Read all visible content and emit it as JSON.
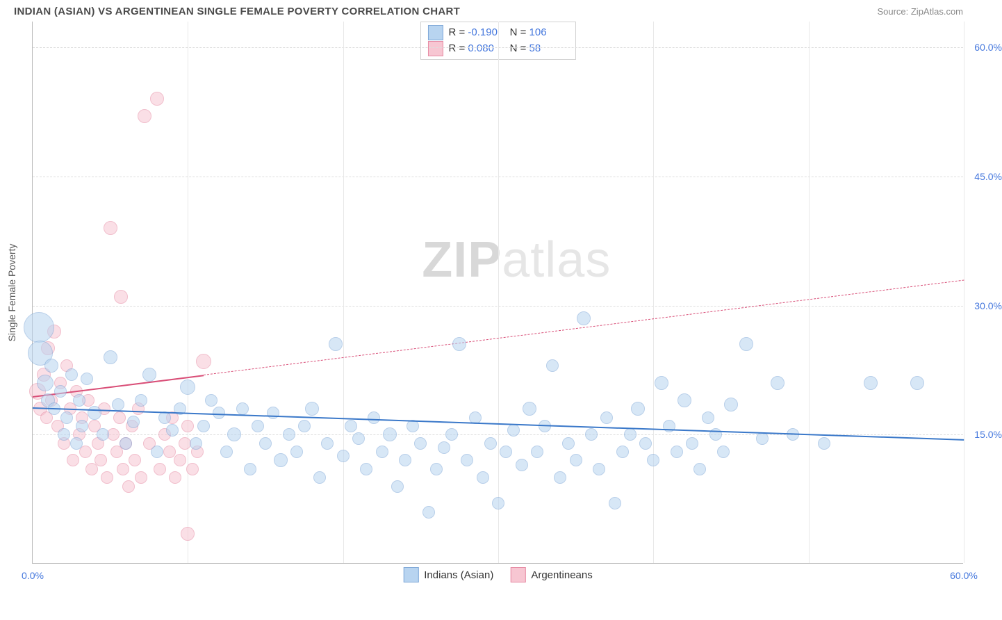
{
  "header": {
    "title": "INDIAN (ASIAN) VS ARGENTINEAN SINGLE FEMALE POVERTY CORRELATION CHART",
    "source": "Source: ZipAtlas.com"
  },
  "chart": {
    "type": "scatter",
    "ylabel": "Single Female Poverty",
    "watermark_a": "ZIP",
    "watermark_b": "atlas",
    "background_color": "#ffffff",
    "grid_color": "#dddddd",
    "axis_color": "#bbbbbb",
    "label_color": "#4477dd",
    "x_domain": [
      0,
      60
    ],
    "y_domain": [
      0,
      63
    ],
    "y_gridlines": [
      15,
      30,
      45,
      60
    ],
    "y_tick_labels": [
      "15.0%",
      "30.0%",
      "45.0%",
      "60.0%"
    ],
    "x_gridlines": [
      10,
      20,
      30,
      40,
      50,
      60
    ],
    "x_tick_visible": [
      {
        "pos": 0,
        "label": "0.0%"
      },
      {
        "pos": 60,
        "label": "60.0%"
      }
    ],
    "series": {
      "indians": {
        "label": "Indians (Asian)",
        "fill": "#b8d4f0",
        "stroke": "#7fa8d8",
        "fill_opacity": 0.55,
        "marker_base_r": 9,
        "trend": {
          "x1": 0,
          "y1": 18.2,
          "x2": 60,
          "y2": 14.5,
          "color": "#3a78c9",
          "width": 2.5,
          "solid_until_x": 60
        },
        "points": [
          [
            0.4,
            27.5,
            22
          ],
          [
            0.5,
            24.5,
            18
          ],
          [
            0.8,
            21,
            12
          ],
          [
            1.0,
            19,
            10
          ],
          [
            1.2,
            23,
            10
          ],
          [
            1.4,
            18,
            9
          ],
          [
            1.8,
            20,
            9
          ],
          [
            2.0,
            15,
            9
          ],
          [
            2.2,
            17,
            9
          ],
          [
            2.5,
            22,
            9
          ],
          [
            2.8,
            14,
            9
          ],
          [
            3.0,
            19,
            9
          ],
          [
            3.2,
            16,
            9
          ],
          [
            3.5,
            21.5,
            9
          ],
          [
            4.0,
            17.5,
            10
          ],
          [
            4.5,
            15,
            9
          ],
          [
            5.0,
            24,
            10
          ],
          [
            5.5,
            18.5,
            9
          ],
          [
            6.0,
            14,
            9
          ],
          [
            6.5,
            16.5,
            9
          ],
          [
            7.0,
            19,
            9
          ],
          [
            7.5,
            22,
            10
          ],
          [
            8.0,
            13,
            9
          ],
          [
            8.5,
            17,
            9
          ],
          [
            9.0,
            15.5,
            9
          ],
          [
            9.5,
            18,
            9
          ],
          [
            10.0,
            20.5,
            11
          ],
          [
            10.5,
            14,
            9
          ],
          [
            11.0,
            16,
            9
          ],
          [
            11.5,
            19,
            9
          ],
          [
            12.0,
            17.5,
            9
          ],
          [
            12.5,
            13,
            9
          ],
          [
            13.0,
            15,
            10
          ],
          [
            13.5,
            18,
            9
          ],
          [
            14.0,
            11,
            9
          ],
          [
            14.5,
            16,
            9
          ],
          [
            15.0,
            14,
            9
          ],
          [
            15.5,
            17.5,
            9
          ],
          [
            16.0,
            12,
            10
          ],
          [
            16.5,
            15,
            9
          ],
          [
            17.0,
            13,
            9
          ],
          [
            17.5,
            16,
            9
          ],
          [
            18.0,
            18,
            10
          ],
          [
            18.5,
            10,
            9
          ],
          [
            19.0,
            14,
            9
          ],
          [
            19.5,
            25.5,
            10
          ],
          [
            20.0,
            12.5,
            9
          ],
          [
            20.5,
            16,
            9
          ],
          [
            21.0,
            14.5,
            9
          ],
          [
            21.5,
            11,
            9
          ],
          [
            22.0,
            17,
            9
          ],
          [
            22.5,
            13,
            9
          ],
          [
            23.0,
            15,
            10
          ],
          [
            23.5,
            9,
            9
          ],
          [
            24.0,
            12,
            9
          ],
          [
            24.5,
            16,
            9
          ],
          [
            25.0,
            14,
            9
          ],
          [
            25.5,
            6,
            9
          ],
          [
            26.0,
            11,
            9
          ],
          [
            26.5,
            13.5,
            9
          ],
          [
            27.0,
            15,
            9
          ],
          [
            27.5,
            25.5,
            10
          ],
          [
            28.0,
            12,
            9
          ],
          [
            28.5,
            17,
            9
          ],
          [
            29.0,
            10,
            9
          ],
          [
            29.5,
            14,
            9
          ],
          [
            30.0,
            7,
            9
          ],
          [
            30.5,
            13,
            9
          ],
          [
            31.0,
            15.5,
            9
          ],
          [
            31.5,
            11.5,
            9
          ],
          [
            32.0,
            18,
            10
          ],
          [
            32.5,
            13,
            9
          ],
          [
            33.0,
            16,
            9
          ],
          [
            33.5,
            23,
            9
          ],
          [
            34.0,
            10,
            9
          ],
          [
            34.5,
            14,
            9
          ],
          [
            35.0,
            12,
            9
          ],
          [
            35.5,
            28.5,
            10
          ],
          [
            36.0,
            15,
            9
          ],
          [
            36.5,
            11,
            9
          ],
          [
            37.0,
            17,
            9
          ],
          [
            37.5,
            7,
            9
          ],
          [
            38.0,
            13,
            9
          ],
          [
            38.5,
            15,
            9
          ],
          [
            39.0,
            18,
            10
          ],
          [
            39.5,
            14,
            9
          ],
          [
            40.0,
            12,
            9
          ],
          [
            40.5,
            21,
            10
          ],
          [
            41.0,
            16,
            9
          ],
          [
            41.5,
            13,
            9
          ],
          [
            42.0,
            19,
            10
          ],
          [
            42.5,
            14,
            9
          ],
          [
            43.0,
            11,
            9
          ],
          [
            43.5,
            17,
            9
          ],
          [
            44.0,
            15,
            9
          ],
          [
            44.5,
            13,
            9
          ],
          [
            45.0,
            18.5,
            10
          ],
          [
            46.0,
            25.5,
            10
          ],
          [
            47.0,
            14.5,
            9
          ],
          [
            48.0,
            21,
            10
          ],
          [
            49.0,
            15,
            9
          ],
          [
            51.0,
            14,
            9
          ],
          [
            54.0,
            21,
            10
          ],
          [
            57.0,
            21,
            10
          ]
        ]
      },
      "argentineans": {
        "label": "Argentineans",
        "fill": "#f7c6d2",
        "stroke": "#e68aa3",
        "fill_opacity": 0.55,
        "marker_base_r": 9,
        "trend": {
          "x1": 0,
          "y1": 19.5,
          "x2": 60,
          "y2": 33.0,
          "color": "#d94f78",
          "width": 2.5,
          "solid_until_x": 11
        },
        "points": [
          [
            0.3,
            20,
            12
          ],
          [
            0.5,
            18,
            10
          ],
          [
            0.7,
            22,
            10
          ],
          [
            0.9,
            17,
            9
          ],
          [
            1.0,
            25,
            10
          ],
          [
            1.2,
            19,
            9
          ],
          [
            1.4,
            27,
            10
          ],
          [
            1.6,
            16,
            9
          ],
          [
            1.8,
            21,
            9
          ],
          [
            2.0,
            14,
            9
          ],
          [
            2.2,
            23,
            9
          ],
          [
            2.4,
            18,
            9
          ],
          [
            2.6,
            12,
            9
          ],
          [
            2.8,
            20,
            9
          ],
          [
            3.0,
            15,
            9
          ],
          [
            3.2,
            17,
            9
          ],
          [
            3.4,
            13,
            9
          ],
          [
            3.6,
            19,
            9
          ],
          [
            3.8,
            11,
            9
          ],
          [
            4.0,
            16,
            9
          ],
          [
            4.2,
            14,
            9
          ],
          [
            4.4,
            12,
            9
          ],
          [
            4.6,
            18,
            9
          ],
          [
            4.8,
            10,
            9
          ],
          [
            5.0,
            39,
            10
          ],
          [
            5.2,
            15,
            9
          ],
          [
            5.4,
            13,
            9
          ],
          [
            5.6,
            17,
            9
          ],
          [
            5.7,
            31,
            10
          ],
          [
            5.8,
            11,
            9
          ],
          [
            6.0,
            14,
            9
          ],
          [
            6.2,
            9,
            9
          ],
          [
            6.4,
            16,
            9
          ],
          [
            6.6,
            12,
            9
          ],
          [
            6.8,
            18,
            9
          ],
          [
            7.0,
            10,
            9
          ],
          [
            7.2,
            52,
            10
          ],
          [
            7.5,
            14,
            9
          ],
          [
            8.0,
            54,
            10
          ],
          [
            8.2,
            11,
            9
          ],
          [
            8.5,
            15,
            9
          ],
          [
            8.8,
            13,
            9
          ],
          [
            9.0,
            17,
            9
          ],
          [
            9.2,
            10,
            9
          ],
          [
            9.5,
            12,
            9
          ],
          [
            9.8,
            14,
            9
          ],
          [
            10.0,
            16,
            9
          ],
          [
            10.3,
            11,
            9
          ],
          [
            10.6,
            13,
            9
          ],
          [
            11.0,
            23.5,
            11
          ],
          [
            10.0,
            3.5,
            10
          ]
        ]
      }
    },
    "legend_top": [
      {
        "swatch_fill": "#b8d4f0",
        "swatch_stroke": "#7fa8d8",
        "r": "-0.190",
        "n": "106"
      },
      {
        "swatch_fill": "#f7c6d2",
        "swatch_stroke": "#e68aa3",
        "r": "0.080",
        "n": "58"
      }
    ],
    "legend_top_labels": {
      "r": "R =",
      "n": "N ="
    },
    "legend_bottom": [
      {
        "swatch_fill": "#b8d4f0",
        "swatch_stroke": "#7fa8d8",
        "label": "Indians (Asian)"
      },
      {
        "swatch_fill": "#f7c6d2",
        "swatch_stroke": "#e68aa3",
        "label": "Argentineans"
      }
    ]
  }
}
